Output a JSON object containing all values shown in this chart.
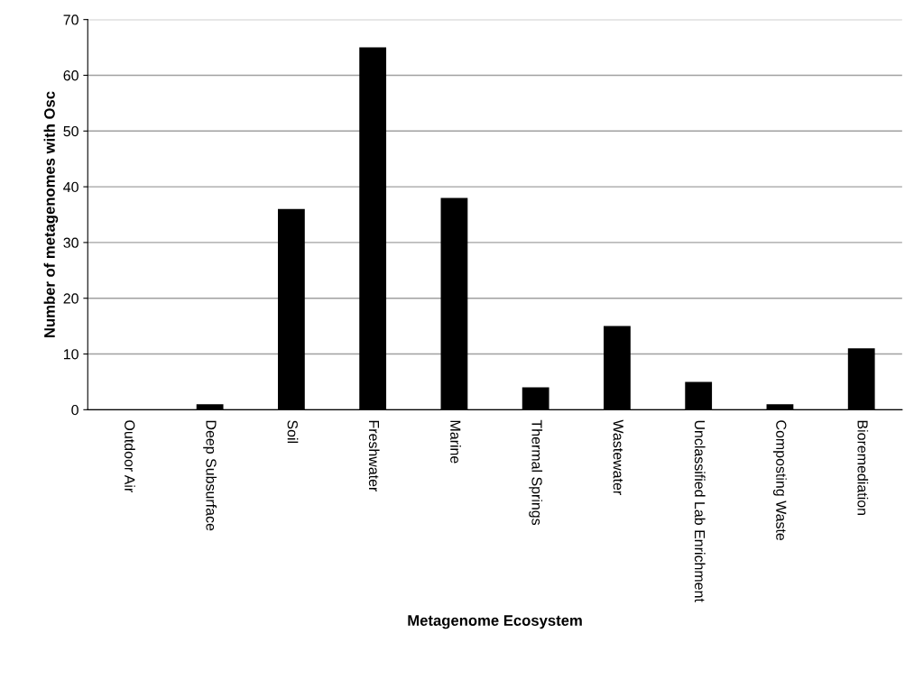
{
  "chart_data": {
    "type": "bar",
    "xlabel": "Metagenome Ecosystem",
    "ylabel": "Number of metagenomes with Osc",
    "categories": [
      "Outdoor Air",
      "Deep Subsurface",
      "Soil",
      "Freshwater",
      "Marine",
      "Thermal Springs",
      "Wastewater",
      "Unclassified Lab Enrichment",
      "Composting Waste",
      "Bioremediation"
    ],
    "values": [
      0,
      1,
      36,
      65,
      38,
      4,
      15,
      5,
      1,
      11
    ],
    "color": "#000000",
    "ylim": [
      0,
      70
    ],
    "yticks": [
      0,
      10,
      20,
      30,
      40,
      50,
      60,
      70
    ],
    "grid": "y"
  }
}
